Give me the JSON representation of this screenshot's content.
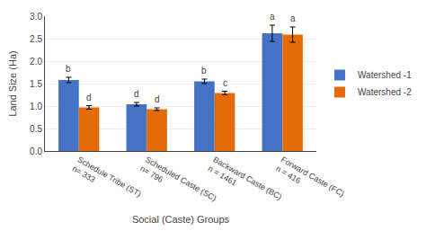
{
  "chart_data": {
    "type": "bar",
    "categories": [
      "Schedule Tribe (ST)\nn= 333",
      "Scheduled Caste (SC)\nn= 796",
      "Backward Caste (BC)\nn = 1461",
      "Forward Caste (FC)\nn = 416"
    ],
    "series": [
      {
        "name": "Watershed -1",
        "color": "#4472C4",
        "values": [
          1.58,
          1.04,
          1.55,
          2.62
        ],
        "errors": [
          0.06,
          0.04,
          0.05,
          0.18
        ],
        "labels": [
          "b",
          "d",
          "b",
          "a"
        ]
      },
      {
        "name": "Watershed -2",
        "color": "#E36C09",
        "values": [
          0.97,
          0.93,
          1.29,
          2.59
        ],
        "errors": [
          0.04,
          0.03,
          0.04,
          0.17
        ],
        "labels": [
          "d",
          "d",
          "c",
          "a"
        ]
      }
    ],
    "xlabel": "Social (Caste) Groups",
    "ylabel": "Land Size (Ha)",
    "ylim": [
      0,
      3.0
    ],
    "yticks": [
      {
        "value": 0,
        "label": "0.0"
      },
      0.5,
      {
        "value": 1.0,
        "label": "1.0"
      },
      1.5,
      {
        "value": 2.0,
        "label": "2.0"
      },
      2.5,
      {
        "value": 3.0,
        "label": "3.0"
      }
    ],
    "grid": true,
    "legend": "right"
  }
}
